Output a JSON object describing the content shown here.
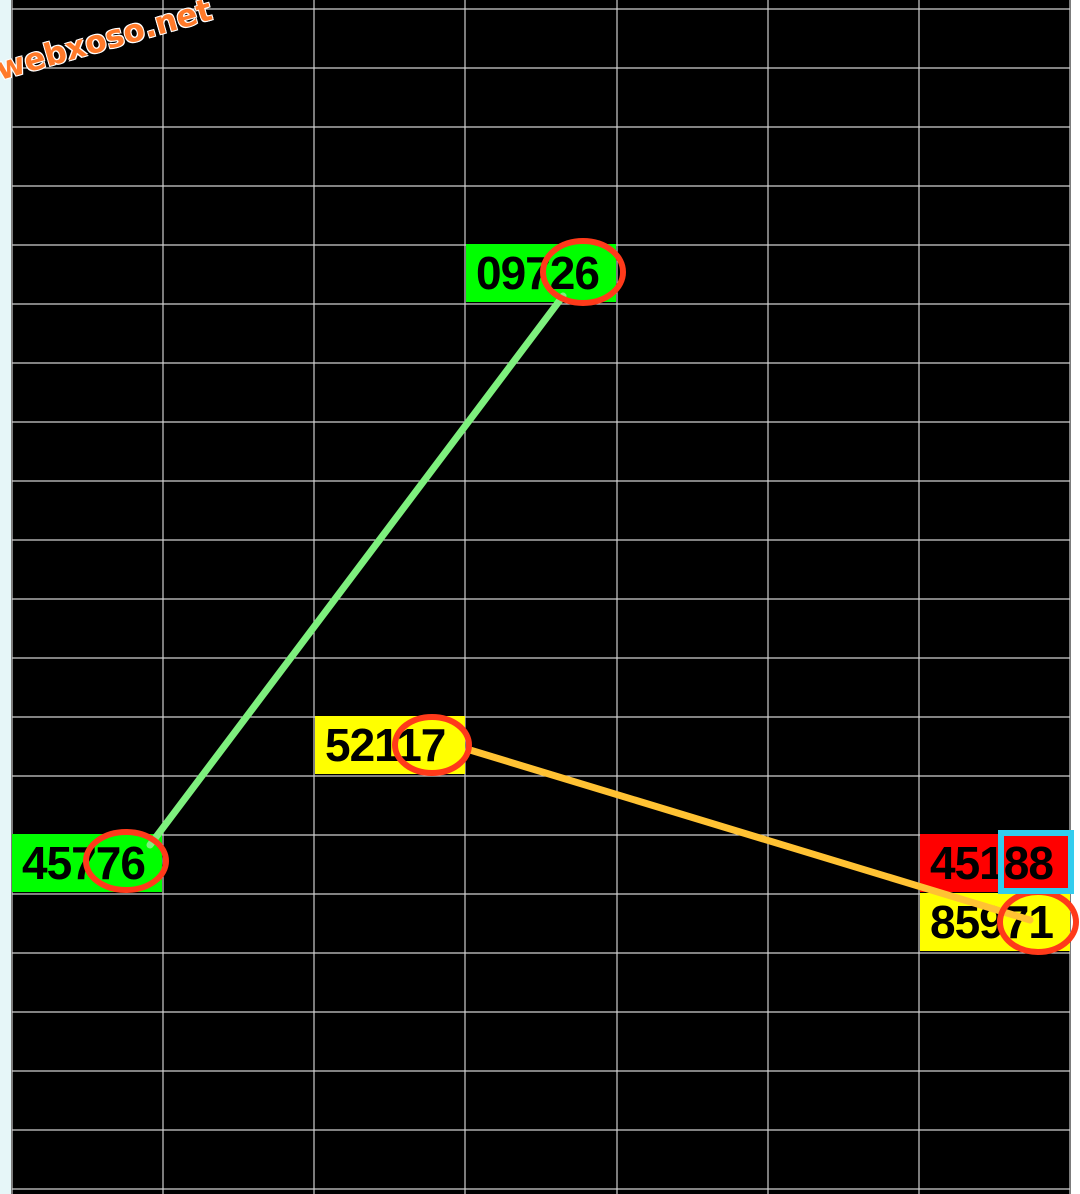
{
  "watermark": "webxoso.net",
  "colors": {
    "background": "#000000",
    "grid_line": "#cfcfcf",
    "green_cell": "#00ff00",
    "yellow_cell": "#ffff00",
    "red_cell": "#ff0000",
    "circle": "#ff3a1a",
    "cyan_box": "#33ccee",
    "green_line": "#7ef07e",
    "orange_line": "#ffc233"
  },
  "cells": [
    {
      "id": "cell-09726",
      "text": "09726",
      "color": "green"
    },
    {
      "id": "cell-52117",
      "text": "52117",
      "color": "yellow"
    },
    {
      "id": "cell-45776",
      "text": "45776",
      "color": "green"
    },
    {
      "id": "cell-45188",
      "text": "45188",
      "color": "red"
    },
    {
      "id": "cell-85971",
      "text": "85971",
      "color": "yellow"
    }
  ]
}
